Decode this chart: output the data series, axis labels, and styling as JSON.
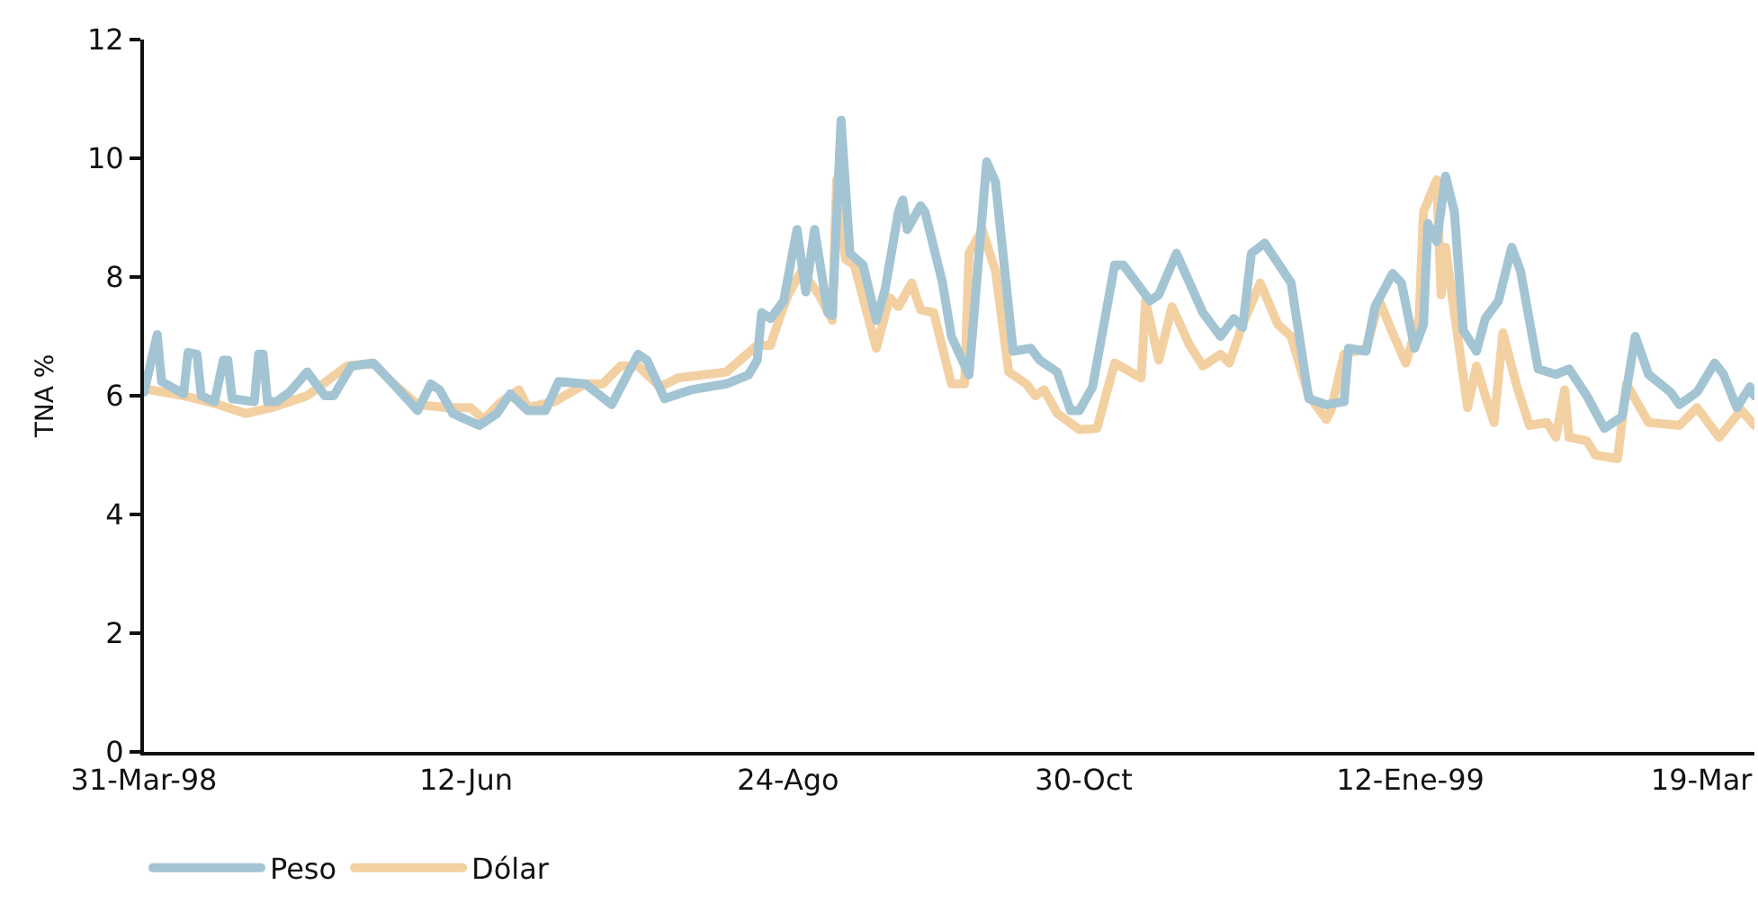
{
  "chart_data": {
    "type": "line",
    "ylabel": "TNA %",
    "xlim": [
      "1998-03-31",
      "1999-03-31"
    ],
    "xticks": [
      {
        "value": "1998-03-31",
        "label": "31-Mar-98"
      },
      {
        "value": "1998-06-12",
        "label": "12-Jun"
      },
      {
        "value": "1998-08-24",
        "label": "24-Ago"
      },
      {
        "value": "1998-10-30",
        "label": "30-Oct"
      },
      {
        "value": "1999-01-12",
        "label": "12-Ene-99"
      },
      {
        "value": "1999-03-19",
        "label": "19-Mar"
      }
    ],
    "ylim": [
      0,
      12
    ],
    "yticks": [
      0,
      2,
      4,
      6,
      8,
      10,
      12
    ],
    "legend": "bottom left",
    "marker": "none",
    "line_style": "solid",
    "series": [
      {
        "name": "Peso",
        "color": "#a3c4d3",
        "x": [
          "1998-03-31",
          "1998-04-03",
          "1998-04-04",
          "1998-04-09",
          "1998-04-10",
          "1998-04-12",
          "1998-04-13",
          "1998-04-16",
          "1998-04-18",
          "1998-04-19",
          "1998-04-20",
          "1998-04-25",
          "1998-04-26",
          "1998-04-27",
          "1998-04-28",
          "1998-04-30",
          "1998-05-03",
          "1998-05-07",
          "1998-05-11",
          "1998-05-13",
          "1998-05-17",
          "1998-05-22",
          "1998-05-26",
          "1998-06-01",
          "1998-06-04",
          "1998-06-06",
          "1998-06-09",
          "1998-06-15",
          "1998-06-19",
          "1998-06-22",
          "1998-06-26",
          "1998-06-30",
          "1998-07-03",
          "1998-07-09",
          "1998-07-15",
          "1998-07-21",
          "1998-07-23",
          "1998-07-27",
          "1998-08-02",
          "1998-08-10",
          "1998-08-15",
          "1998-08-17",
          "1998-08-18",
          "1998-08-20",
          "1998-08-23",
          "1998-08-26",
          "1998-08-28",
          "1998-08-30",
          "1998-09-02",
          "1998-09-03",
          "1998-09-05",
          "1998-09-07",
          "1998-09-10",
          "1998-09-13",
          "1998-09-15",
          "1998-09-18",
          "1998-09-19",
          "1998-09-20",
          "1998-09-23",
          "1998-09-24",
          "1998-09-28",
          "1998-09-30",
          "1998-10-04",
          "1998-10-08",
          "1998-10-10",
          "1998-10-14",
          "1998-10-18",
          "1998-10-20",
          "1998-10-24",
          "1998-10-27",
          "1998-10-29",
          "1998-11-01",
          "1998-11-06",
          "1998-11-08",
          "1998-11-14",
          "1998-11-16",
          "1998-11-20",
          "1998-11-26",
          "1998-11-30",
          "1998-12-03",
          "1998-12-05",
          "1998-12-07",
          "1998-12-10",
          "1998-12-16",
          "1998-12-20",
          "1998-12-24",
          "1998-12-28",
          "1998-12-29",
          "1999-01-02",
          "1999-01-04",
          "1999-01-08",
          "1999-01-10",
          "1999-01-13",
          "1999-01-15",
          "1999-01-16",
          "1999-01-18",
          "1999-01-20",
          "1999-01-22",
          "1999-01-24",
          "1999-01-27",
          "1999-01-29",
          "1999-02-01",
          "1999-02-04",
          "1999-02-06",
          "1999-02-10",
          "1999-02-14",
          "1999-02-17",
          "1999-02-21",
          "1999-02-25",
          "1999-03-01",
          "1999-03-04",
          "1999-03-07",
          "1999-03-12",
          "1999-03-14",
          "1999-03-18",
          "1999-03-22",
          "1999-03-24",
          "1999-03-27",
          "1999-03-30",
          "1999-03-31"
        ],
        "values": [
          6.06,
          7.03,
          6.24,
          6.03,
          6.73,
          6.7,
          6.0,
          5.9,
          6.6,
          6.6,
          5.95,
          5.9,
          6.7,
          6.7,
          5.9,
          5.9,
          6.06,
          6.4,
          6.0,
          6.0,
          6.5,
          6.55,
          6.24,
          5.75,
          6.2,
          6.1,
          5.7,
          5.5,
          5.7,
          6.03,
          5.75,
          5.75,
          6.24,
          6.2,
          5.85,
          6.7,
          6.6,
          5.95,
          6.1,
          6.2,
          6.35,
          6.6,
          7.4,
          7.3,
          7.6,
          8.8,
          7.75,
          8.8,
          7.4,
          7.35,
          10.64,
          8.4,
          8.2,
          7.27,
          7.8,
          9.1,
          9.3,
          8.8,
          9.2,
          9.1,
          7.9,
          7.0,
          6.35,
          9.94,
          9.6,
          6.75,
          6.8,
          6.6,
          6.4,
          5.75,
          5.75,
          6.15,
          8.2,
          8.2,
          7.6,
          7.7,
          8.4,
          7.4,
          7.0,
          7.3,
          7.15,
          8.4,
          8.57,
          7.9,
          5.95,
          5.85,
          5.9,
          6.8,
          6.75,
          7.5,
          8.06,
          7.9,
          6.8,
          7.2,
          8.9,
          8.6,
          9.7,
          9.1,
          7.1,
          6.75,
          7.3,
          7.6,
          8.5,
          8.1,
          6.45,
          6.36,
          6.45,
          6.0,
          5.45,
          5.65,
          7.0,
          6.36,
          6.06,
          5.85,
          6.06,
          6.55,
          6.36,
          5.8,
          6.15,
          6.0
        ]
      },
      {
        "name": "Dólar",
        "color": "#f3d0a2",
        "x": [
          "1998-03-31",
          "1998-04-09",
          "1998-04-17",
          "1998-04-23",
          "1998-04-29",
          "1998-05-07",
          "1998-05-16",
          "1998-05-22",
          "1998-05-26",
          "1998-06-01",
          "1998-06-08",
          "1998-06-13",
          "1998-06-16",
          "1998-06-20",
          "1998-06-24",
          "1998-06-26",
          "1998-07-02",
          "1998-07-09",
          "1998-07-13",
          "1998-07-17",
          "1998-07-21",
          "1998-07-26",
          "1998-07-30",
          "1998-08-10",
          "1998-08-17",
          "1998-08-20",
          "1998-08-22",
          "1998-08-24",
          "1998-08-27",
          "1998-08-31",
          "1998-09-03",
          "1998-09-04",
          "1998-09-06",
          "1998-09-08",
          "1998-09-13",
          "1998-09-16",
          "1998-09-18",
          "1998-09-21",
          "1998-09-23",
          "1998-09-26",
          "1998-09-30",
          "1998-10-03",
          "1998-10-04",
          "1998-10-07",
          "1998-10-10",
          "1998-10-13",
          "1998-10-17",
          "1998-10-19",
          "1998-10-21",
          "1998-10-24",
          "1998-10-29",
          "1998-11-02",
          "1998-11-06",
          "1998-11-12",
          "1998-11-13",
          "1998-11-16",
          "1998-11-19",
          "1998-11-23",
          "1998-11-26",
          "1998-11-30",
          "1998-12-02",
          "1998-12-05",
          "1998-12-09",
          "1998-12-13",
          "1998-12-16",
          "1998-12-20",
          "1998-12-24",
          "1998-12-25",
          "1998-12-28",
          "1999-01-02",
          "1999-01-05",
          "1999-01-08",
          "1999-01-11",
          "1999-01-14",
          "1999-01-15",
          "1999-01-18",
          "1999-01-19",
          "1999-01-20",
          "1999-01-22",
          "1999-01-25",
          "1999-01-27",
          "1999-01-29",
          "1999-01-31",
          "1999-02-02",
          "1999-02-05",
          "1999-02-08",
          "1999-02-12",
          "1999-02-14",
          "1999-02-16",
          "1999-02-17",
          "1999-02-21",
          "1999-02-23",
          "1999-02-28",
          "1999-03-02",
          "1999-03-07",
          "1999-03-14",
          "1999-03-18",
          "1999-03-23",
          "1999-03-28",
          "1999-03-31"
        ],
        "values": [
          6.12,
          6.0,
          5.85,
          5.7,
          5.8,
          6.0,
          6.5,
          6.55,
          6.24,
          5.85,
          5.8,
          5.8,
          5.6,
          5.9,
          6.1,
          5.8,
          5.9,
          6.2,
          6.2,
          6.5,
          6.5,
          6.15,
          6.3,
          6.4,
          6.85,
          6.85,
          7.3,
          7.7,
          8.1,
          7.7,
          7.27,
          9.64,
          8.3,
          8.2,
          6.8,
          7.65,
          7.5,
          7.9,
          7.45,
          7.4,
          6.2,
          6.2,
          8.4,
          8.8,
          8.1,
          6.4,
          6.2,
          6.0,
          6.1,
          5.7,
          5.43,
          5.45,
          6.55,
          6.3,
          7.6,
          6.6,
          7.5,
          6.85,
          6.5,
          6.7,
          6.55,
          7.2,
          7.9,
          7.2,
          7.0,
          6.0,
          5.6,
          5.75,
          6.7,
          6.8,
          7.6,
          7.06,
          6.55,
          7.3,
          9.1,
          9.64,
          7.7,
          8.5,
          7.4,
          5.8,
          6.5,
          6.0,
          5.55,
          7.06,
          6.2,
          5.5,
          5.55,
          5.3,
          6.1,
          5.3,
          5.24,
          5.0,
          4.94,
          6.2,
          5.55,
          5.5,
          5.8,
          5.3,
          5.76,
          5.5
        ]
      }
    ]
  }
}
